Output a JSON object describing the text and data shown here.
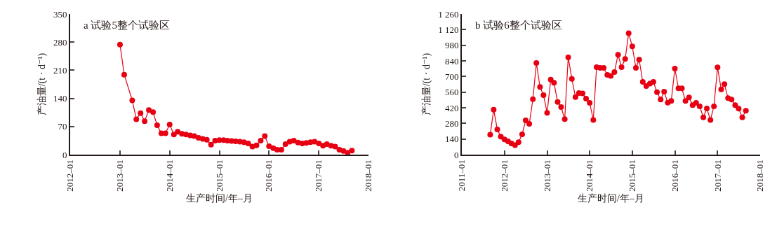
{
  "chart_data": [
    {
      "type": "line",
      "title": "a 试验5整个试验区",
      "xlabel": "生产时间/年–月",
      "ylabel": "产油量/(t · d⁻¹)",
      "marker": "circle",
      "line_style": "solid",
      "x": [
        "2013-01",
        "2013-02",
        "2013-04",
        "2013-05",
        "2013-06",
        "2013-07",
        "2013-08",
        "2013-09",
        "2013-10",
        "2013-11",
        "2013-12",
        "2014-01",
        "2014-02",
        "2014-03",
        "2014-04",
        "2014-05",
        "2014-06",
        "2014-07",
        "2014-08",
        "2014-09",
        "2014-10",
        "2014-11",
        "2014-12",
        "2015-01",
        "2015-02",
        "2015-03",
        "2015-04",
        "2015-05",
        "2015-06",
        "2015-07",
        "2015-08",
        "2015-09",
        "2015-10",
        "2015-11",
        "2015-12",
        "2016-01",
        "2016-02",
        "2016-03",
        "2016-04",
        "2016-05",
        "2016-06",
        "2016-07",
        "2016-08",
        "2016-09",
        "2016-10",
        "2016-11",
        "2016-12",
        "2017-01",
        "2017-02",
        "2017-03",
        "2017-04",
        "2017-05",
        "2017-06",
        "2017-07",
        "2017-08",
        "2017-09"
      ],
      "series": [
        {
          "color": "#e60012",
          "values": [
            274,
            199,
            135,
            88,
            103,
            83,
            111,
            106,
            73,
            53,
            53,
            75,
            50,
            57,
            52,
            50,
            48,
            46,
            42,
            39,
            37,
            25,
            35,
            36,
            36,
            35,
            34,
            33,
            32,
            31,
            28,
            20,
            23,
            35,
            46,
            21,
            16,
            12,
            12,
            26,
            32,
            35,
            30,
            28,
            29,
            31,
            32,
            28,
            22,
            26,
            22,
            20,
            12,
            9,
            5,
            10
          ]
        }
      ],
      "xlim": [
        "2012-01",
        "2018-01"
      ],
      "xticks": [
        {
          "value": "2012-01",
          "label": "2012–01"
        },
        {
          "value": "2013-01",
          "label": "2013–01"
        },
        {
          "value": "2014-01",
          "label": "2014–01"
        },
        {
          "value": "2015-01",
          "label": "2015–01"
        },
        {
          "value": "2016-01",
          "label": "2016–01"
        },
        {
          "value": "2017-01",
          "label": "2017–01"
        },
        {
          "value": "2018-01",
          "label": "2018–01"
        }
      ],
      "ylim": [
        0,
        350
      ],
      "yticks": [
        0,
        70,
        140,
        210,
        280,
        350
      ]
    },
    {
      "type": "line",
      "title": "b 试验6整个试验区",
      "xlabel": "生产时间/年–月",
      "ylabel": "产油量/(t · d⁻¹)",
      "marker": "circle",
      "line_style": "solid",
      "x": [
        "2011-09",
        "2011-10",
        "2011-11",
        "2011-12",
        "2012-01",
        "2012-02",
        "2012-03",
        "2012-04",
        "2012-05",
        "2012-06",
        "2012-07",
        "2012-08",
        "2012-09",
        "2012-10",
        "2012-11",
        "2012-12",
        "2013-01",
        "2013-02",
        "2013-03",
        "2013-04",
        "2013-05",
        "2013-06",
        "2013-07",
        "2013-08",
        "2013-09",
        "2013-10",
        "2013-11",
        "2013-12",
        "2014-01",
        "2014-02",
        "2014-03",
        "2014-04",
        "2014-05",
        "2014-06",
        "2014-07",
        "2014-08",
        "2014-09",
        "2014-10",
        "2014-11",
        "2014-12",
        "2015-01",
        "2015-02",
        "2015-03",
        "2015-04",
        "2015-05",
        "2015-06",
        "2015-07",
        "2015-08",
        "2015-09",
        "2015-10",
        "2015-11",
        "2015-12",
        "2016-01",
        "2016-02",
        "2016-03",
        "2016-04",
        "2016-05",
        "2016-06",
        "2016-07",
        "2016-08",
        "2016-09",
        "2016-10",
        "2016-11",
        "2016-12",
        "2017-01",
        "2017-02",
        "2017-03",
        "2017-04",
        "2017-05",
        "2017-06",
        "2017-07",
        "2017-08",
        "2017-09"
      ],
      "series": [
        {
          "color": "#e60012",
          "values": [
            178,
            403,
            226,
            161,
            136,
            119,
            100,
            84,
            111,
            182,
            307,
            276,
            497,
            821,
            606,
            533,
            374,
            673,
            644,
            472,
            426,
            318,
            872,
            679,
            516,
            552,
            548,
            502,
            464,
            311,
            784,
            777,
            777,
            715,
            706,
            740,
            895,
            784,
            857,
            1087,
            970,
            777,
            851,
            652,
            614,
            637,
            652,
            560,
            493,
            564,
            466,
            481,
            771,
            594,
            594,
            481,
            512,
            443,
            464,
            433,
            334,
            414,
            311,
            433,
            782,
            585,
            631,
            506,
            493,
            443,
            412,
            334,
            393
          ]
        }
      ],
      "xlim": [
        "2011-01",
        "2018-01"
      ],
      "xticks": [
        {
          "value": "2011-01",
          "label": "2011–01"
        },
        {
          "value": "2012-01",
          "label": "2012–01"
        },
        {
          "value": "2013-01",
          "label": "2013–01"
        },
        {
          "value": "2014-01",
          "label": "2014–01"
        },
        {
          "value": "2015-01",
          "label": "2015–01"
        },
        {
          "value": "2016-01",
          "label": "2016–01"
        },
        {
          "value": "2017-01",
          "label": "2017–01"
        },
        {
          "value": "2018-01",
          "label": "2018–01"
        }
      ],
      "ylim": [
        0,
        1260
      ],
      "yticks": [
        0,
        140,
        280,
        420,
        560,
        700,
        840,
        980,
        {
          "value": 1120,
          "label": "1 120"
        },
        {
          "value": 1260,
          "label": "1 260"
        }
      ]
    }
  ]
}
